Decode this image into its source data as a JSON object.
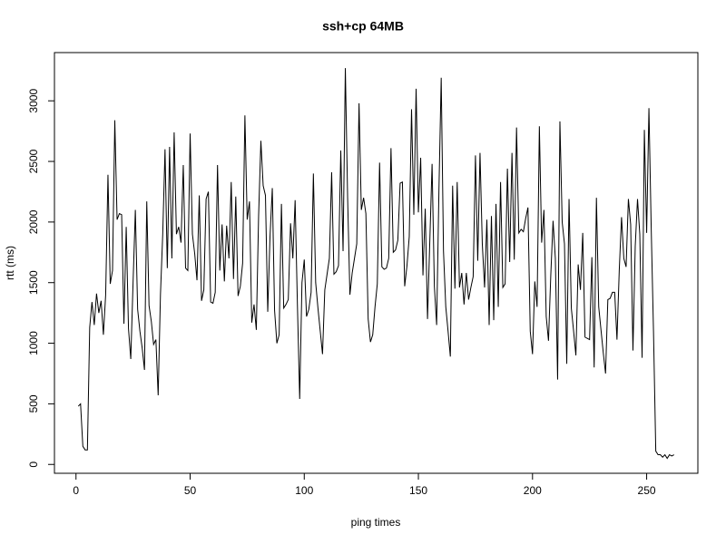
{
  "chart_data": {
    "type": "line",
    "title": "ssh+cp 64MB",
    "x_label": "ping times",
    "y_label": "rtt (ms)",
    "color": "#000000",
    "x": [
      1,
      2,
      3,
      4,
      5,
      6,
      7,
      8,
      9,
      10,
      11,
      12,
      13,
      14,
      15,
      16,
      17,
      18,
      19,
      20,
      21,
      22,
      23,
      24,
      25,
      26,
      27,
      28,
      29,
      30,
      31,
      32,
      33,
      34,
      35,
      36,
      37,
      38,
      39,
      40,
      41,
      42,
      43,
      44,
      45,
      46,
      47,
      48,
      49,
      50,
      51,
      52,
      53,
      54,
      55,
      56,
      57,
      58,
      59,
      60,
      61,
      62,
      63,
      64,
      65,
      66,
      67,
      68,
      69,
      70,
      71,
      72,
      73,
      74,
      75,
      76,
      77,
      78,
      79,
      80,
      81,
      82,
      83,
      84,
      85,
      86,
      87,
      88,
      89,
      90,
      91,
      92,
      93,
      94,
      95,
      96,
      97,
      98,
      99,
      100,
      101,
      102,
      103,
      104,
      105,
      106,
      107,
      108,
      109,
      110,
      111,
      112,
      113,
      114,
      115,
      116,
      117,
      118,
      119,
      120,
      121,
      122,
      123,
      124,
      125,
      126,
      127,
      128,
      129,
      130,
      131,
      132,
      133,
      134,
      135,
      136,
      137,
      138,
      139,
      140,
      141,
      142,
      143,
      144,
      145,
      146,
      147,
      148,
      149,
      150,
      151,
      152,
      153,
      154,
      155,
      156,
      157,
      158,
      159,
      160,
      161,
      162,
      163,
      164,
      165,
      166,
      167,
      168,
      169,
      170,
      171,
      172,
      173,
      174,
      175,
      176,
      177,
      178,
      179,
      180,
      181,
      182,
      183,
      184,
      185,
      186,
      187,
      188,
      189,
      190,
      191,
      192,
      193,
      194,
      195,
      196,
      197,
      198,
      199,
      200,
      201,
      202,
      203,
      204,
      205,
      206,
      207,
      208,
      209,
      210,
      211,
      212,
      213,
      214,
      215,
      216,
      217,
      218,
      219,
      220,
      221,
      222,
      223,
      224,
      225,
      226,
      227,
      228,
      229,
      230,
      231,
      232,
      233,
      234,
      235,
      236,
      237,
      238,
      239,
      240,
      241,
      242,
      243,
      244,
      245,
      246,
      247,
      248,
      249,
      250,
      251,
      252,
      253,
      254,
      255,
      256,
      257,
      258,
      259,
      260,
      261,
      262
    ],
    "values": [
      480,
      500,
      150,
      120,
      120,
      1130,
      1340,
      1150,
      1410,
      1250,
      1350,
      1070,
      1400,
      2390,
      1490,
      1600,
      2840,
      2020,
      2070,
      2060,
      1160,
      1960,
      1120,
      870,
      1500,
      2100,
      1280,
      1100,
      960,
      780,
      2170,
      1310,
      1180,
      990,
      1030,
      570,
      1400,
      1900,
      2600,
      1620,
      2620,
      1700,
      2740,
      1900,
      1960,
      1830,
      2470,
      1620,
      1600,
      2730,
      1900,
      1740,
      1520,
      2220,
      1350,
      1440,
      2190,
      2250,
      1340,
      1330,
      1420,
      2470,
      1600,
      1980,
      1510,
      1970,
      1700,
      2330,
      1530,
      2210,
      1390,
      1470,
      1660,
      2880,
      2020,
      2170,
      1170,
      1320,
      1110,
      2050,
      2670,
      2300,
      2220,
      1260,
      1880,
      2280,
      1270,
      1000,
      1070,
      2150,
      1290,
      1320,
      1360,
      1990,
      1700,
      2180,
      1320,
      540,
      1500,
      1690,
      1220,
      1280,
      1420,
      2400,
      1500,
      1290,
      1100,
      910,
      1440,
      1570,
      1700,
      2410,
      1570,
      1590,
      1640,
      2590,
      1760,
      3270,
      2200,
      1400,
      1580,
      1700,
      1820,
      2980,
      2100,
      2200,
      2070,
      1200,
      1010,
      1070,
      1300,
      1490,
      2490,
      1630,
      1610,
      1620,
      1700,
      2610,
      1750,
      1770,
      1850,
      2320,
      2330,
      1470,
      1640,
      1880,
      2930,
      2060,
      3100,
      2080,
      2530,
      1560,
      2110,
      1200,
      1840,
      2480,
      1470,
      1150,
      2260,
      3190,
      1760,
      1300,
      1100,
      890,
      2300,
      1450,
      2330,
      1460,
      1580,
      1320,
      1580,
      1360,
      1460,
      1550,
      2550,
      1680,
      2570,
      1820,
      1460,
      2020,
      1150,
      2050,
      1190,
      2150,
      1300,
      2330,
      1460,
      1490,
      2440,
      1670,
      2570,
      1690,
      2780,
      1910,
      1940,
      1920,
      2030,
      2120,
      1100,
      910,
      1510,
      1300,
      2790,
      1830,
      2100,
      1220,
      1020,
      1560,
      2010,
      1700,
      700,
      2830,
      2000,
      1820,
      830,
      2190,
      1290,
      1100,
      900,
      1650,
      1440,
      1910,
      1050,
      1040,
      1030,
      1710,
      800,
      2200,
      1300,
      1110,
      920,
      750,
      1360,
      1370,
      1420,
      1420,
      1030,
      1600,
      2040,
      1700,
      1630,
      2190,
      1980,
      940,
      1800,
      2190,
      1900,
      880,
      2760,
      1910,
      2940,
      1950,
      1100,
      110,
      80,
      80,
      60,
      80,
      50,
      80,
      70,
      80
    ],
    "xlim": [
      -9.44,
      272.44
    ],
    "ylim": [
      -73,
      3398
    ],
    "xticks": [
      0,
      50,
      100,
      150,
      200,
      250
    ],
    "yticks": [
      0,
      500,
      1000,
      1500,
      2000,
      2500,
      3000
    ]
  }
}
